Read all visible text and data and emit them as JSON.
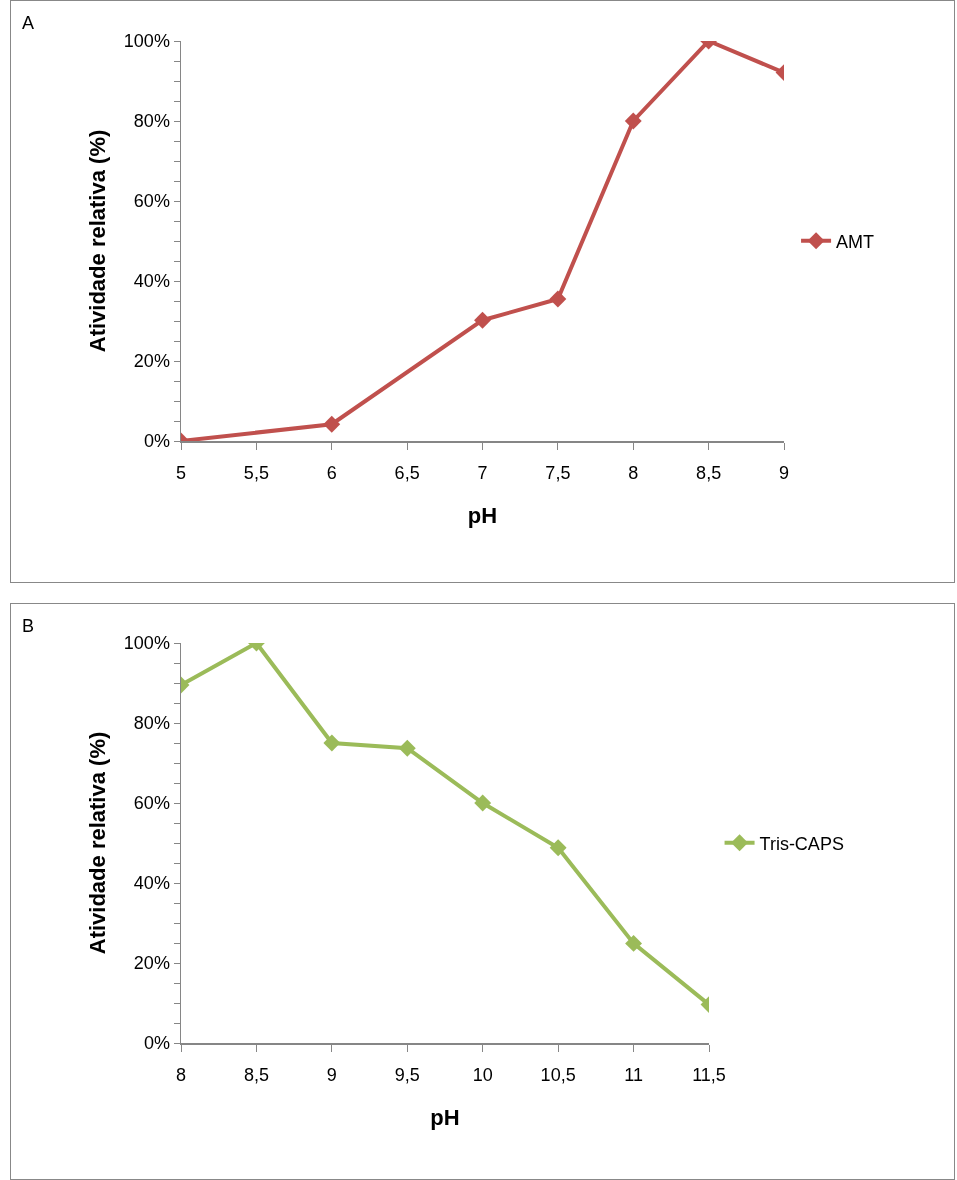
{
  "chart_data": [
    {
      "type": "line",
      "annotations": [
        "A"
      ],
      "xlabel": "pH",
      "ylabel": "Atividade relativa (%)",
      "x": [
        5,
        6,
        7,
        7.5,
        8,
        8.5,
        9
      ],
      "series": [
        {
          "name": "AMT",
          "color": "#c0504d",
          "values": [
            0,
            4.2,
            30.2,
            35.5,
            80,
            100,
            92.1
          ]
        }
      ],
      "xlim": [
        5,
        9
      ],
      "xticks": [
        5,
        {
          "value": 5.5,
          "label": "5,5"
        },
        6,
        {
          "value": 6.5,
          "label": "6,5"
        },
        7,
        {
          "value": 7.5,
          "label": "7,5"
        },
        8,
        {
          "value": 8.5,
          "label": "8,5"
        },
        9
      ],
      "ylim": [
        0,
        100
      ],
      "yticks": [
        {
          "value": 0,
          "label": "0%"
        },
        {
          "value": 5,
          "label": null
        },
        {
          "value": 10,
          "label": null
        },
        {
          "value": 15,
          "label": null
        },
        {
          "value": 20,
          "label": "20%"
        },
        {
          "value": 25,
          "label": null
        },
        {
          "value": 30,
          "label": null
        },
        {
          "value": 35,
          "label": null
        },
        {
          "value": 40,
          "label": "40%"
        },
        {
          "value": 45,
          "label": null
        },
        {
          "value": 50,
          "label": null
        },
        {
          "value": 55,
          "label": null
        },
        {
          "value": 60,
          "label": "60%"
        },
        {
          "value": 65,
          "label": null
        },
        {
          "value": 70,
          "label": null
        },
        {
          "value": 75,
          "label": null
        },
        {
          "value": 80,
          "label": "80%"
        },
        {
          "value": 85,
          "label": null
        },
        {
          "value": 90,
          "label": null
        },
        {
          "value": 95,
          "label": null
        },
        {
          "value": 100,
          "label": "100%"
        }
      ],
      "grid": false,
      "legend": "right",
      "marker": "diamond",
      "line_style": "solid"
    },
    {
      "type": "line",
      "annotations": [
        "B"
      ],
      "xlabel": "pH",
      "ylabel": "Atividade relativa (%)",
      "x": [
        8,
        8.5,
        9,
        9.5,
        10,
        10.5,
        11,
        11.5
      ],
      "series": [
        {
          "name": "Tris-CAPS",
          "color": "#9bbb59",
          "values": [
            89.5,
            100,
            75,
            73.7,
            60,
            48.8,
            24.9,
            9.6
          ]
        }
      ],
      "xlim": [
        8,
        11.5
      ],
      "xticks": [
        8,
        {
          "value": 8.5,
          "label": "8,5"
        },
        9,
        {
          "value": 9.5,
          "label": "9,5"
        },
        10,
        {
          "value": 10.5,
          "label": "10,5"
        },
        11,
        {
          "value": 11.5,
          "label": "11,5"
        }
      ],
      "ylim": [
        0,
        100
      ],
      "yticks": [
        {
          "value": 0,
          "label": "0%"
        },
        {
          "value": 5,
          "label": null
        },
        {
          "value": 10,
          "label": null
        },
        {
          "value": 15,
          "label": null
        },
        {
          "value": 20,
          "label": "20%"
        },
        {
          "value": 25,
          "label": null
        },
        {
          "value": 30,
          "label": null
        },
        {
          "value": 35,
          "label": null
        },
        {
          "value": 40,
          "label": "40%"
        },
        {
          "value": 45,
          "label": null
        },
        {
          "value": 50,
          "label": null
        },
        {
          "value": 55,
          "label": null
        },
        {
          "value": 60,
          "label": "60%"
        },
        {
          "value": 65,
          "label": null
        },
        {
          "value": 70,
          "label": null
        },
        {
          "value": 75,
          "label": null
        },
        {
          "value": 80,
          "label": "80%"
        },
        {
          "value": 85,
          "label": null
        },
        {
          "value": 90,
          "label": null
        },
        {
          "value": 95,
          "label": null
        },
        {
          "value": 100,
          "label": "100%"
        }
      ],
      "grid": false,
      "legend": "right",
      "marker": "diamond",
      "line_style": "solid"
    }
  ]
}
